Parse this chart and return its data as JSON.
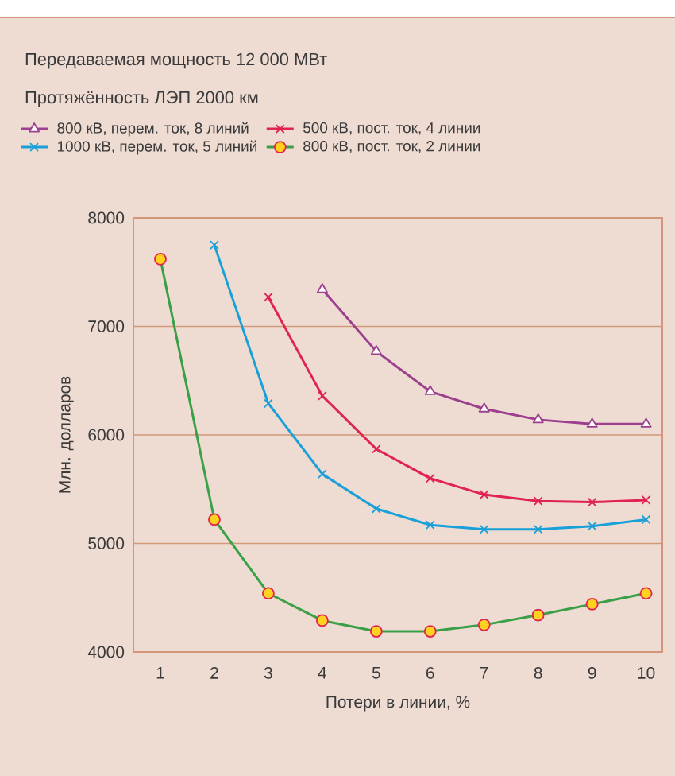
{
  "chart_data": {
    "type": "line",
    "title": "Передаваемая мощность 12 000 МВт",
    "subtitle": "Протяжённость ЛЭП 2000 км",
    "xlabel": "Потери в линии, %",
    "ylabel": "Млн. долларов",
    "x": [
      1,
      2,
      3,
      4,
      5,
      6,
      7,
      8,
      9,
      10
    ],
    "series": [
      {
        "name": "800 кВ, перем. ток, 8 линий",
        "color": "#9b3f8e",
        "marker": "triangle",
        "values": [
          null,
          null,
          null,
          7340,
          6770,
          6400,
          6240,
          6140,
          6100,
          6100
        ]
      },
      {
        "name": "500 кВ, пост. ток, 4 линии",
        "color": "#e0234f",
        "marker": "cross",
        "values": [
          null,
          null,
          7270,
          6360,
          5870,
          5600,
          5450,
          5390,
          5380,
          5400
        ]
      },
      {
        "name": "1000 кВ, перем. ток, 5 линий",
        "color": "#1aa0d8",
        "marker": "cross",
        "values": [
          null,
          7750,
          6290,
          5640,
          5320,
          5170,
          5130,
          5130,
          5160,
          5220
        ]
      },
      {
        "name": "800 кВ, пост. ток, 2 линии",
        "color": "#3aa047",
        "marker": "circle",
        "values": [
          7620,
          5220,
          4540,
          4290,
          4190,
          4190,
          4250,
          4340,
          4440,
          4540
        ]
      }
    ],
    "xlim": [
      0.5,
      10.3
    ],
    "ylim": [
      4000,
      8000
    ],
    "xticks": [
      1,
      2,
      3,
      4,
      5,
      6,
      7,
      8,
      9,
      10
    ],
    "yticks": [
      4000,
      5000,
      6000,
      7000,
      8000
    ],
    "grid": "y",
    "legend": "top"
  }
}
